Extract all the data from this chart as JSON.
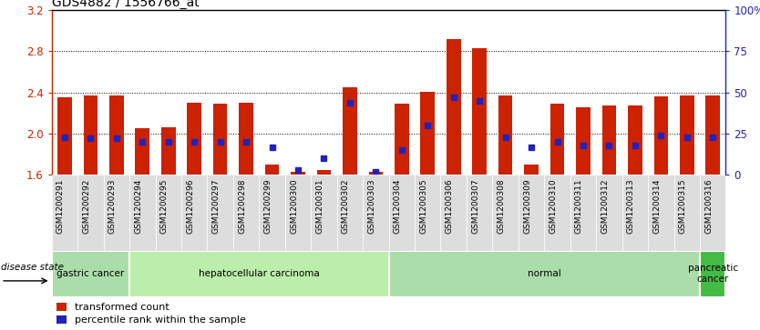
{
  "title": "GDS4882 / 1556766_at",
  "samples": [
    "GSM1200291",
    "GSM1200292",
    "GSM1200293",
    "GSM1200294",
    "GSM1200295",
    "GSM1200296",
    "GSM1200297",
    "GSM1200298",
    "GSM1200299",
    "GSM1200300",
    "GSM1200301",
    "GSM1200302",
    "GSM1200303",
    "GSM1200304",
    "GSM1200305",
    "GSM1200306",
    "GSM1200307",
    "GSM1200308",
    "GSM1200309",
    "GSM1200310",
    "GSM1200311",
    "GSM1200312",
    "GSM1200313",
    "GSM1200314",
    "GSM1200315",
    "GSM1200316"
  ],
  "transformed_count": [
    2.35,
    2.37,
    2.37,
    2.05,
    2.06,
    2.3,
    2.29,
    2.3,
    1.7,
    1.63,
    1.65,
    2.45,
    1.63,
    2.29,
    2.41,
    2.92,
    2.83,
    2.37,
    1.7,
    2.29,
    2.26,
    2.27,
    2.27,
    2.36,
    2.37,
    2.37
  ],
  "percentile_rank": [
    23,
    22,
    22,
    20,
    20,
    20,
    20,
    20,
    17,
    3,
    10,
    44,
    2,
    15,
    30,
    47,
    45,
    23,
    17,
    20,
    18,
    18,
    18,
    24,
    23,
    23
  ],
  "ylim_left": [
    1.6,
    3.2
  ],
  "ylim_right": [
    0,
    100
  ],
  "yticks_left": [
    1.6,
    2.0,
    2.4,
    2.8,
    3.2
  ],
  "yticks_right": [
    0,
    25,
    50,
    75,
    100
  ],
  "ytick_labels_right": [
    "0",
    "25",
    "50",
    "75",
    "100%"
  ],
  "groups": [
    {
      "label": "gastric cancer",
      "start": 0,
      "end": 3,
      "color": "#AADDAA"
    },
    {
      "label": "hepatocellular carcinoma",
      "start": 3,
      "end": 13,
      "color": "#BBEEAA"
    },
    {
      "label": "normal",
      "start": 13,
      "end": 25,
      "color": "#AADDAA"
    },
    {
      "label": "pancreatic\ncancer",
      "start": 25,
      "end": 26,
      "color": "#44BB44"
    }
  ],
  "bar_color": "#CC2200",
  "dot_color": "#2222BB",
  "bar_bottom": 1.6,
  "tick_color_left": "#CC2200",
  "tick_color_right": "#2222BB",
  "xtick_bg": "#DDDDDD",
  "group_separator_color": "white"
}
